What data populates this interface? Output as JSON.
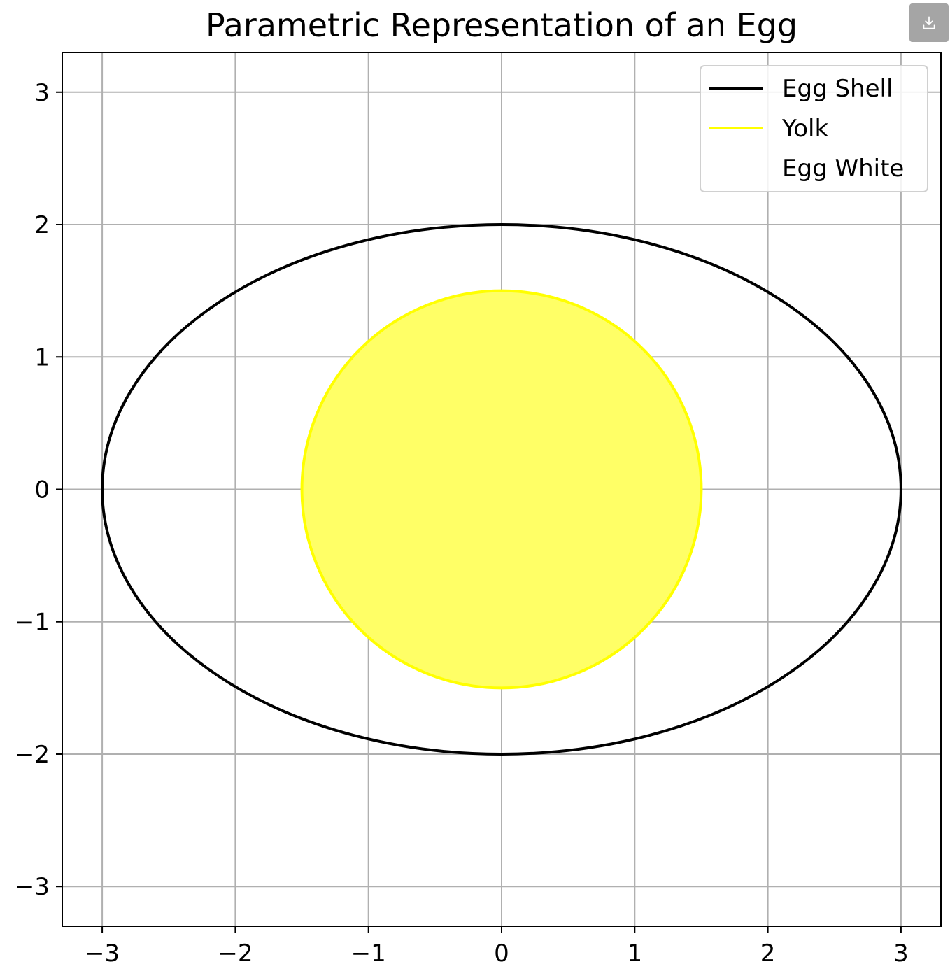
{
  "toolbar": {
    "download_icon": "download-icon"
  },
  "chart_data": {
    "type": "line",
    "title": "Parametric Representation of an Egg",
    "xlabel": "",
    "ylabel": "",
    "xlim": [
      -3.3,
      3.3
    ],
    "ylim": [
      -3.3,
      3.3
    ],
    "xticks": [
      -3,
      -2,
      -1,
      0,
      1,
      2,
      3
    ],
    "yticks": [
      -3,
      -2,
      -1,
      0,
      1,
      2,
      3
    ],
    "xtick_labels": [
      "−3",
      "−2",
      "−1",
      "0",
      "1",
      "2",
      "3"
    ],
    "ytick_labels": [
      "−3",
      "−2",
      "−1",
      "0",
      "1",
      "2",
      "3"
    ],
    "grid": true,
    "aspect": "equal",
    "legend_position": "top-right",
    "series": [
      {
        "name": "Egg Shell",
        "kind": "ellipse",
        "center": [
          0,
          0
        ],
        "semi_axis_x": 3,
        "semi_axis_y": 2,
        "color": "#000000",
        "filled": false
      },
      {
        "name": "Yolk",
        "kind": "ellipse",
        "center": [
          0,
          0
        ],
        "semi_axis_x": 1.5,
        "semi_axis_y": 1.5,
        "color": "#ffff00",
        "filled": true,
        "fill_color": "#ffff66"
      },
      {
        "name": "Egg White",
        "kind": "ellipse",
        "center": [
          0,
          0
        ],
        "semi_axis_x": 3,
        "semi_axis_y": 2,
        "color": "#ffffff",
        "filled": true,
        "fill_color": "#ffffff"
      }
    ]
  }
}
